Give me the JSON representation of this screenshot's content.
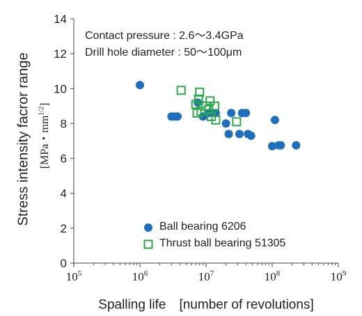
{
  "chart_data": {
    "type": "scatter",
    "title": "",
    "xlabel": "Spalling life　[number of revolutions]",
    "ylabel": "Stress intensity facror range",
    "ylabel_unit": "MPa・mm",
    "ylabel_unit_exp": "1/2",
    "x_scale": "log",
    "xlim": [
      100000,
      1000000000
    ],
    "ylim": [
      0,
      14
    ],
    "x_ticks": [
      {
        "base": "10",
        "exp": "5"
      },
      {
        "base": "10",
        "exp": "6"
      },
      {
        "base": "10",
        "exp": "7"
      },
      {
        "base": "10",
        "exp": "8"
      },
      {
        "base": "10",
        "exp": "9"
      }
    ],
    "y_ticks": [
      "0",
      "2",
      "4",
      "6",
      "8",
      "10",
      "12",
      "14"
    ],
    "grid": false,
    "annotations": [
      "Contact pressure : 2.6～3.4GPa",
      "Drill hole diameter : 50～100μm"
    ],
    "legend_position": "bottom-center",
    "series": [
      {
        "name": "Ball bearing 6206",
        "marker": "filled-circle",
        "color": "#1f6fbf",
        "points": [
          [
            1000000,
            10.2
          ],
          [
            3000000,
            8.4
          ],
          [
            3300000,
            8.4
          ],
          [
            3700000,
            8.4
          ],
          [
            7500000,
            9.2
          ],
          [
            9000000,
            8.4
          ],
          [
            11000000,
            8.6
          ],
          [
            14000000,
            8.6
          ],
          [
            20000000,
            8.0
          ],
          [
            22000000,
            7.4
          ],
          [
            24000000,
            8.6
          ],
          [
            32000000,
            7.4
          ],
          [
            35000000,
            8.6
          ],
          [
            40000000,
            8.6
          ],
          [
            43000000,
            7.4
          ],
          [
            48000000,
            7.3
          ],
          [
            100000000,
            6.7
          ],
          [
            110000000,
            8.2
          ],
          [
            125000000,
            6.75
          ],
          [
            135000000,
            6.75
          ],
          [
            230000000,
            6.75
          ]
        ]
      },
      {
        "name": "Thrust ball bearing 51305",
        "marker": "open-square",
        "color": "#2aa84a",
        "points": [
          [
            4200000,
            9.9
          ],
          [
            7000000,
            9.1
          ],
          [
            7300000,
            8.6
          ],
          [
            7700000,
            9.4
          ],
          [
            8000000,
            9.8
          ],
          [
            8400000,
            8.7
          ],
          [
            10000000,
            9.0
          ],
          [
            11000000,
            8.8
          ],
          [
            11500000,
            9.3
          ],
          [
            12000000,
            8.4
          ],
          [
            13500000,
            9.0
          ],
          [
            14000000,
            8.2
          ],
          [
            29000000,
            8.1
          ]
        ]
      }
    ]
  }
}
